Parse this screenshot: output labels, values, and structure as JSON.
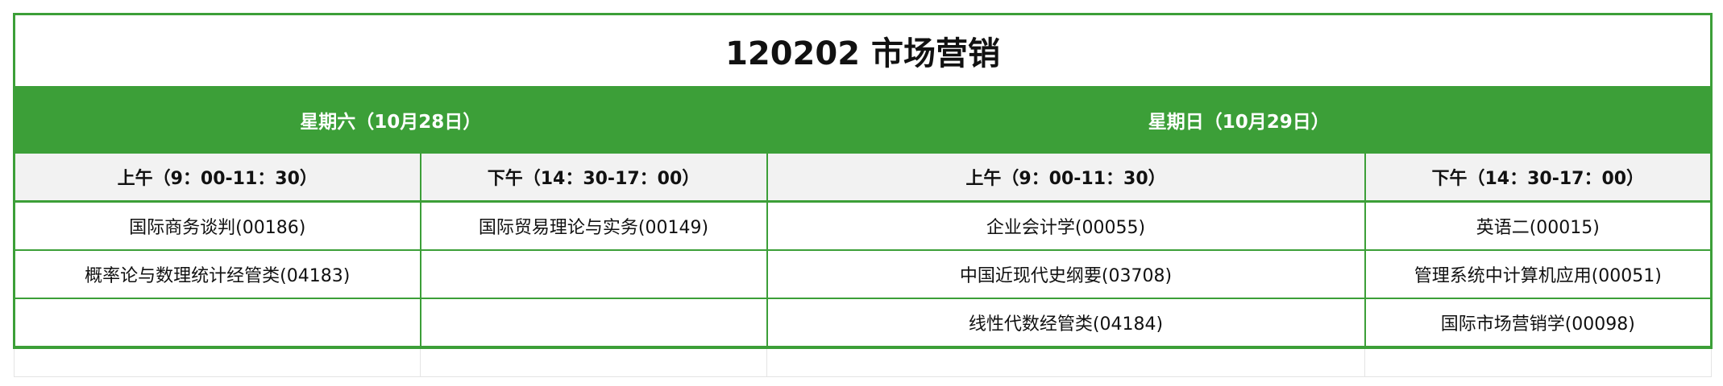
{
  "title": "120202 市场营销",
  "days": [
    {
      "label": "星期六（10月28日）"
    },
    {
      "label": "星期日（10月29日）"
    }
  ],
  "slots": [
    "上午（9：00-11：30）",
    "下午（14：30-17：00）",
    "上午（9：00-11：30）",
    "下午（14：30-17：00）"
  ],
  "rows": [
    [
      "国际商务谈判(00186)",
      "国际贸易理论与实务(00149)",
      "企业会计学(00055)",
      "英语二(00015)"
    ],
    [
      "概率论与数理统计经管类(04183)",
      "",
      "中国近现代史纲要(03708)",
      "管理系统中计算机应用(00051)"
    ],
    [
      "",
      "",
      "线性代数经管类(04184)",
      "国际市场营销学(00098)"
    ]
  ],
  "colors": {
    "accent": "#3c9f38",
    "subheader_bg": "#f2f2f2"
  }
}
